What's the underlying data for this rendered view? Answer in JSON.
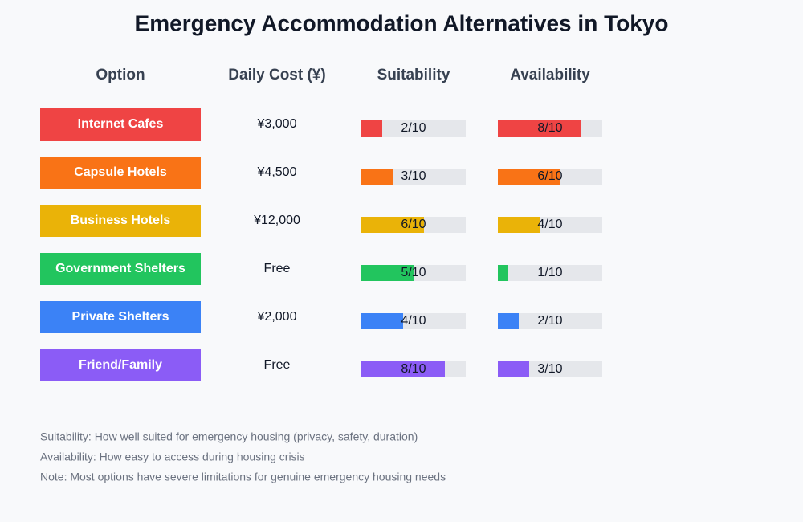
{
  "title": "Emergency Accommodation Alternatives in Tokyo",
  "table": {
    "headers": [
      "Option",
      "Daily Cost (¥)",
      "Suitability",
      "Availability"
    ],
    "max": 10,
    "rows": [
      {
        "option": "Internet Cafes",
        "cost": "¥3,000",
        "color": "#ef4444",
        "suitability": {
          "value": 2,
          "label": "2/10"
        },
        "availability": {
          "value": 8,
          "label": "8/10"
        }
      },
      {
        "option": "Capsule Hotels",
        "cost": "¥4,500",
        "color": "#f97316",
        "suitability": {
          "value": 3,
          "label": "3/10"
        },
        "availability": {
          "value": 6,
          "label": "6/10"
        }
      },
      {
        "option": "Business Hotels",
        "cost": "¥12,000",
        "color": "#eab308",
        "suitability": {
          "value": 6,
          "label": "6/10"
        },
        "availability": {
          "value": 4,
          "label": "4/10"
        }
      },
      {
        "option": "Government Shelters",
        "cost": "Free",
        "color": "#22c55e",
        "suitability": {
          "value": 5,
          "label": "5/10"
        },
        "availability": {
          "value": 1,
          "label": "1/10"
        }
      },
      {
        "option": "Private Shelters",
        "cost": "¥2,000",
        "color": "#3b82f6",
        "suitability": {
          "value": 4,
          "label": "4/10"
        },
        "availability": {
          "value": 2,
          "label": "2/10"
        }
      },
      {
        "option": "Friend/Family",
        "cost": "Free",
        "color": "#8b5cf6",
        "suitability": {
          "value": 8,
          "label": "8/10"
        },
        "availability": {
          "value": 3,
          "label": "3/10"
        }
      }
    ]
  },
  "notes": [
    "Suitability: How well suited for emergency housing (privacy, safety, duration)",
    "Availability: How easy to access during housing crisis",
    "Note: Most options have severe limitations for genuine emergency housing needs"
  ]
}
